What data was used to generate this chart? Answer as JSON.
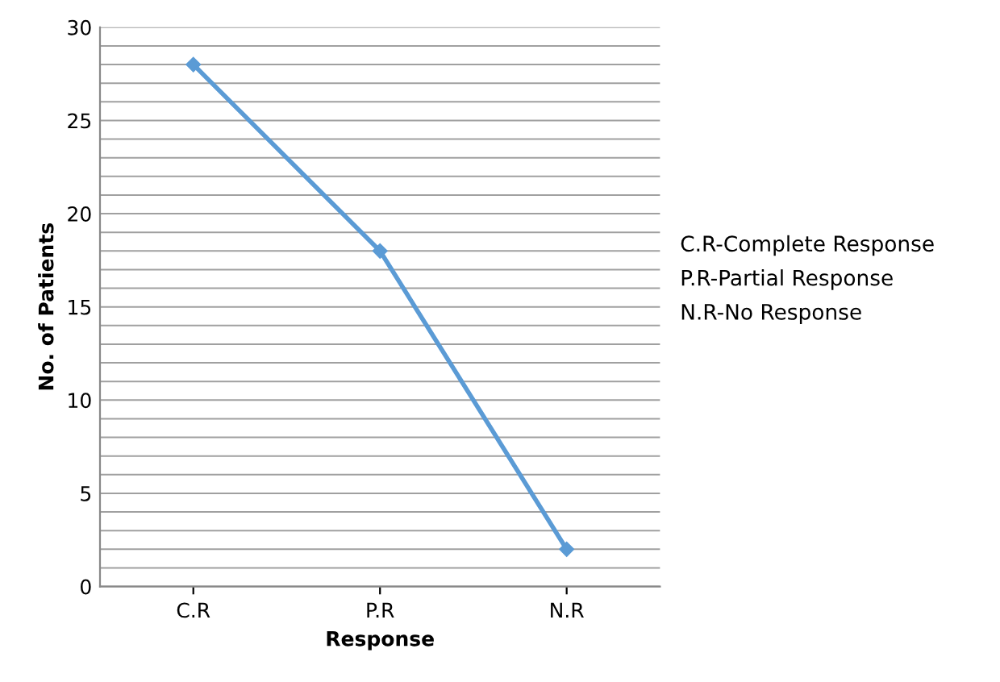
{
  "chart_data": {
    "type": "line",
    "xlabel": "Response",
    "ylabel": "No. of Patients",
    "categories": [
      "C.R",
      "P.R",
      "N.R"
    ],
    "series": [
      {
        "color": "#5b9bd5",
        "values": [
          28,
          18,
          2
        ]
      }
    ],
    "ylim": [
      0,
      30
    ],
    "yticks": [
      0,
      {
        "value": 1,
        "label": null
      },
      {
        "value": 2,
        "label": null
      },
      {
        "value": 3,
        "label": null
      },
      {
        "value": 4,
        "label": null
      },
      5,
      {
        "value": 6,
        "label": null
      },
      {
        "value": 7,
        "label": null
      },
      {
        "value": 8,
        "label": null
      },
      {
        "value": 9,
        "label": null
      },
      10,
      {
        "value": 11,
        "label": null
      },
      {
        "value": 12,
        "label": null
      },
      {
        "value": 13,
        "label": null
      },
      {
        "value": 14,
        "label": null
      },
      15,
      {
        "value": 16,
        "label": null
      },
      {
        "value": 17,
        "label": null
      },
      {
        "value": 18,
        "label": null
      },
      {
        "value": 19,
        "label": null
      },
      20,
      {
        "value": 21,
        "label": null
      },
      {
        "value": 22,
        "label": null
      },
      {
        "value": 23,
        "label": null
      },
      {
        "value": 24,
        "label": null
      },
      25,
      {
        "value": 26,
        "label": null
      },
      {
        "value": 27,
        "label": null
      },
      {
        "value": 28,
        "label": null
      },
      {
        "value": 29,
        "label": null
      },
      30
    ],
    "grid": "y",
    "marker": "diamond",
    "line_style": "solid",
    "annotations": [
      "C.R-Complete Response",
      "P.R-Partial Response",
      "N.R-No Response"
    ]
  }
}
